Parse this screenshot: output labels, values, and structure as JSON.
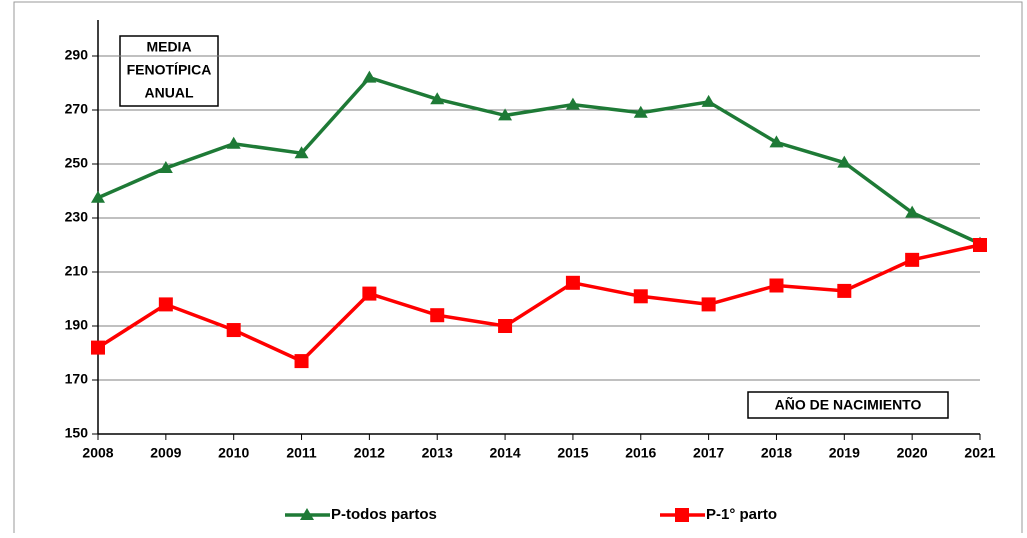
{
  "chart_data": {
    "type": "line",
    "title_lines": [
      "MEDIA",
      "FENOTÍPICA",
      "ANUAL"
    ],
    "x_label": "AÑO DE NACIMIENTO",
    "categories": [
      "2008",
      "2009",
      "2010",
      "2011",
      "2012",
      "2013",
      "2014",
      "2015",
      "2016",
      "2017",
      "2018",
      "2019",
      "2020",
      "2021"
    ],
    "series": [
      {
        "name": "P-todos partos",
        "color": "#1e7a36",
        "marker": "triangle",
        "values": [
          237.5,
          248.5,
          257.5,
          254,
          282,
          274,
          268,
          272,
          269,
          273,
          258,
          250.5,
          232,
          220.5
        ]
      },
      {
        "name": "P-1° parto",
        "color": "#ff0000",
        "marker": "square",
        "values": [
          182,
          198,
          188.5,
          177,
          202,
          194,
          190,
          206,
          201,
          198,
          205,
          203,
          214.5,
          220
        ]
      }
    ],
    "ylim": [
      150,
      300
    ],
    "yticks": [
      150,
      170,
      190,
      210,
      230,
      250,
      270,
      290
    ],
    "grid": true
  }
}
